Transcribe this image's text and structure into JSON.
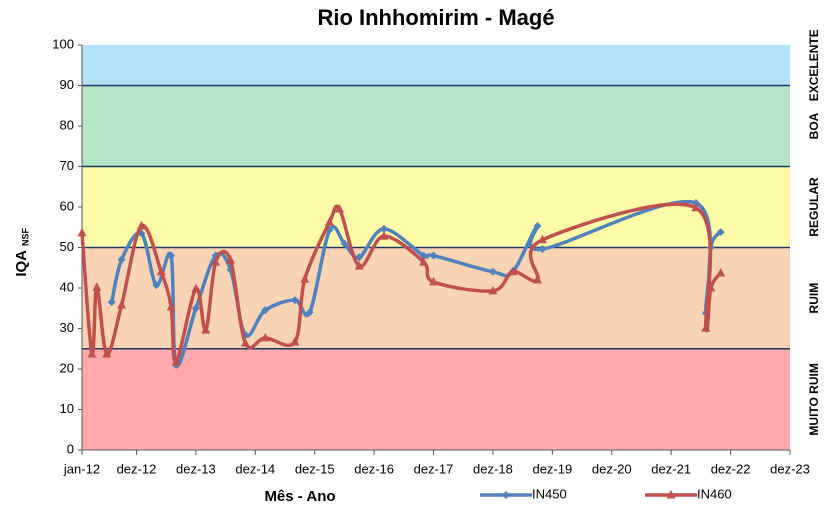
{
  "chart_data": {
    "type": "line",
    "title": "Rio Inhhomirim - Magé",
    "ylabel": "IQA",
    "ylabel_sub": "NSF",
    "xlabel": "Mês - Ano",
    "xlim": [
      0,
      143
    ],
    "xticks": [
      {
        "value": 0,
        "label": "jan-12"
      },
      {
        "value": 11,
        "label": "dez-12"
      },
      {
        "value": 23,
        "label": "dez-13"
      },
      {
        "value": 35,
        "label": "dez-14"
      },
      {
        "value": 47,
        "label": "dez-15"
      },
      {
        "value": 59,
        "label": "dez-16"
      },
      {
        "value": 71,
        "label": "dez-17"
      },
      {
        "value": 83,
        "label": "dez-18"
      },
      {
        "value": 95,
        "label": "dez-19"
      },
      {
        "value": 107,
        "label": "dez-20"
      },
      {
        "value": 119,
        "label": "dez-21"
      },
      {
        "value": 131,
        "label": "dez-22"
      },
      {
        "value": 143,
        "label": "dez-23"
      }
    ],
    "ylim": [
      0,
      100
    ],
    "yticks": [
      0,
      10,
      20,
      30,
      40,
      50,
      60,
      70,
      80,
      90,
      100
    ],
    "bands": [
      {
        "label": "MUITO RUIM",
        "from": 0,
        "to": 25,
        "color": "#ffaaaa"
      },
      {
        "label": "RUIM",
        "from": 25,
        "to": 50,
        "color": "#f8d4b4"
      },
      {
        "label": "REGULAR",
        "from": 50,
        "to": 70,
        "color": "#fefaa8"
      },
      {
        "label": "BOA",
        "from": 70,
        "to": 90,
        "color": "#b4e4c4"
      },
      {
        "label": "EXCELENTE",
        "from": 90,
        "to": 100,
        "color": "#b4e2f6"
      }
    ],
    "series": [
      {
        "name": "IN450",
        "color": "#4f81bd",
        "x": [
          6,
          8,
          12,
          15,
          18,
          19,
          23,
          27,
          30,
          33,
          37,
          43,
          46,
          50,
          53,
          56,
          61,
          69,
          71,
          83,
          87,
          92,
          93,
          124,
          126,
          127,
          129
        ],
        "values": [
          36.5,
          47,
          53.5,
          40.7,
          48,
          21,
          35,
          48,
          44.5,
          28.4,
          34.5,
          37,
          34,
          54.3,
          51,
          47.6,
          54.6,
          48,
          48,
          44,
          44,
          55.3,
          49.6,
          61,
          33.8,
          50,
          53.8
        ]
      },
      {
        "name": "IN460",
        "color": "#c0504d",
        "x": [
          0,
          2,
          3,
          5,
          8,
          12,
          16,
          18,
          19,
          23,
          25,
          27,
          30,
          33,
          37,
          43,
          45,
          50,
          52,
          56,
          61,
          69,
          71,
          83,
          87,
          92,
          93,
          124,
          126,
          127,
          129
        ],
        "values": [
          53.6,
          23.7,
          40.2,
          23.7,
          35.8,
          55.3,
          44,
          35.3,
          21.7,
          39.8,
          29.6,
          46.4,
          46.9,
          26.4,
          27.7,
          26.7,
          42.2,
          56.3,
          59.5,
          45.4,
          52.8,
          46.4,
          41.5,
          39.3,
          44,
          42,
          51.9,
          59.8,
          30.1,
          40,
          43.7
        ]
      }
    ]
  }
}
